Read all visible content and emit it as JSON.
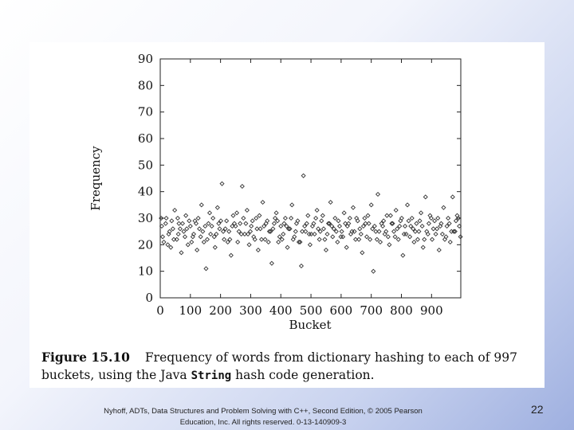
{
  "chart_data": {
    "type": "scatter",
    "title": "",
    "xlabel": "Bucket",
    "ylabel": "Frequency",
    "xlim": [
      0,
      997
    ],
    "ylim": [
      0,
      90
    ],
    "xticks": [
      0,
      100,
      200,
      300,
      400,
      500,
      600,
      700,
      800,
      900
    ],
    "yticks": [
      0,
      10,
      20,
      30,
      40,
      50,
      60,
      70,
      80,
      90
    ],
    "marker": "diamond",
    "grid": false,
    "points": [
      [
        5,
        27
      ],
      [
        12,
        21
      ],
      [
        20,
        30
      ],
      [
        28,
        24
      ],
      [
        35,
        19
      ],
      [
        42,
        26
      ],
      [
        48,
        33
      ],
      [
        55,
        22
      ],
      [
        62,
        28
      ],
      [
        70,
        17
      ],
      [
        78,
        25
      ],
      [
        85,
        31
      ],
      [
        92,
        20
      ],
      [
        100,
        27
      ],
      [
        108,
        23
      ],
      [
        115,
        29
      ],
      [
        122,
        18
      ],
      [
        130,
        26
      ],
      [
        137,
        35
      ],
      [
        145,
        21
      ],
      [
        152,
        11
      ],
      [
        160,
        28
      ],
      [
        167,
        24
      ],
      [
        175,
        30
      ],
      [
        182,
        19
      ],
      [
        190,
        34
      ],
      [
        197,
        26
      ],
      [
        205,
        43
      ],
      [
        212,
        22
      ],
      [
        220,
        29
      ],
      [
        228,
        25
      ],
      [
        235,
        16
      ],
      [
        242,
        31
      ],
      [
        250,
        27
      ],
      [
        257,
        21
      ],
      [
        265,
        28
      ],
      [
        272,
        42
      ],
      [
        280,
        24
      ],
      [
        288,
        33
      ],
      [
        295,
        20
      ],
      [
        302,
        27
      ],
      [
        310,
        23
      ],
      [
        318,
        30
      ],
      [
        325,
        18
      ],
      [
        332,
        26
      ],
      [
        340,
        36
      ],
      [
        348,
        22
      ],
      [
        355,
        29
      ],
      [
        362,
        25
      ],
      [
        370,
        13
      ],
      [
        378,
        28
      ],
      [
        385,
        32
      ],
      [
        392,
        21
      ],
      [
        400,
        27
      ],
      [
        408,
        24
      ],
      [
        415,
        30
      ],
      [
        422,
        19
      ],
      [
        430,
        26
      ],
      [
        437,
        35
      ],
      [
        445,
        23
      ],
      [
        452,
        28
      ],
      [
        460,
        21
      ],
      [
        468,
        12
      ],
      [
        475,
        46
      ],
      [
        482,
        25
      ],
      [
        490,
        31
      ],
      [
        497,
        20
      ],
      [
        505,
        27
      ],
      [
        512,
        24
      ],
      [
        520,
        33
      ],
      [
        528,
        22
      ],
      [
        535,
        29
      ],
      [
        542,
        26
      ],
      [
        550,
        18
      ],
      [
        558,
        28
      ],
      [
        565,
        36
      ],
      [
        572,
        23
      ],
      [
        580,
        30
      ],
      [
        588,
        21
      ],
      [
        595,
        27
      ],
      [
        602,
        25
      ],
      [
        610,
        32
      ],
      [
        618,
        19
      ],
      [
        625,
        28
      ],
      [
        632,
        24
      ],
      [
        640,
        34
      ],
      [
        648,
        22
      ],
      [
        655,
        29
      ],
      [
        662,
        26
      ],
      [
        670,
        17
      ],
      [
        678,
        30
      ],
      [
        685,
        23
      ],
      [
        692,
        28
      ],
      [
        700,
        35
      ],
      [
        707,
        10
      ],
      [
        715,
        25
      ],
      [
        722,
        39
      ],
      [
        730,
        21
      ],
      [
        738,
        27
      ],
      [
        745,
        24
      ],
      [
        752,
        31
      ],
      [
        760,
        20
      ],
      [
        768,
        28
      ],
      [
        775,
        25
      ],
      [
        782,
        33
      ],
      [
        790,
        22
      ],
      [
        797,
        29
      ],
      [
        805,
        16
      ],
      [
        812,
        27
      ],
      [
        820,
        35
      ],
      [
        828,
        23
      ],
      [
        835,
        30
      ],
      [
        842,
        21
      ],
      [
        850,
        28
      ],
      [
        858,
        25
      ],
      [
        865,
        32
      ],
      [
        872,
        19
      ],
      [
        880,
        38
      ],
      [
        888,
        24
      ],
      [
        895,
        31
      ],
      [
        902,
        22
      ],
      [
        910,
        29
      ],
      [
        918,
        26
      ],
      [
        925,
        18
      ],
      [
        932,
        28
      ],
      [
        940,
        34
      ],
      [
        948,
        23
      ],
      [
        955,
        30
      ],
      [
        962,
        21
      ],
      [
        970,
        38
      ],
      [
        978,
        25
      ],
      [
        985,
        31
      ],
      [
        992,
        27
      ],
      [
        8,
        23
      ],
      [
        18,
        28
      ],
      [
        31,
        25
      ],
      [
        45,
        22
      ],
      [
        58,
        30
      ],
      [
        66,
        26
      ],
      [
        82,
        23
      ],
      [
        96,
        29
      ],
      [
        111,
        24
      ],
      [
        126,
        30
      ],
      [
        141,
        25
      ],
      [
        156,
        22
      ],
      [
        171,
        27
      ],
      [
        186,
        24
      ],
      [
        201,
        29
      ],
      [
        216,
        26
      ],
      [
        231,
        22
      ],
      [
        246,
        28
      ],
      [
        261,
        25
      ],
      [
        276,
        30
      ],
      [
        291,
        24
      ],
      [
        306,
        29
      ],
      [
        321,
        26
      ],
      [
        336,
        22
      ],
      [
        351,
        28
      ],
      [
        366,
        25
      ],
      [
        381,
        30
      ],
      [
        396,
        23
      ],
      [
        411,
        28
      ],
      [
        426,
        26
      ],
      [
        441,
        22
      ],
      [
        456,
        29
      ],
      [
        471,
        25
      ],
      [
        486,
        28
      ],
      [
        501,
        24
      ],
      [
        516,
        30
      ],
      [
        531,
        25
      ],
      [
        546,
        22
      ],
      [
        561,
        28
      ],
      [
        576,
        26
      ],
      [
        591,
        29
      ],
      [
        606,
        23
      ],
      [
        621,
        27
      ],
      [
        636,
        25
      ],
      [
        651,
        30
      ],
      [
        666,
        24
      ],
      [
        681,
        28
      ],
      [
        696,
        22
      ],
      [
        711,
        27
      ],
      [
        726,
        25
      ],
      [
        741,
        29
      ],
      [
        756,
        23
      ],
      [
        771,
        28
      ],
      [
        786,
        26
      ],
      [
        801,
        30
      ],
      [
        816,
        24
      ],
      [
        831,
        27
      ],
      [
        846,
        25
      ],
      [
        861,
        29
      ],
      [
        876,
        22
      ],
      [
        891,
        28
      ],
      [
        906,
        26
      ],
      [
        921,
        30
      ],
      [
        936,
        24
      ],
      [
        951,
        27
      ],
      [
        966,
        25
      ],
      [
        981,
        29
      ],
      [
        996,
        23
      ],
      [
        3,
        30
      ],
      [
        25,
        20
      ],
      [
        38,
        29
      ],
      [
        60,
        24
      ],
      [
        74,
        28
      ],
      [
        88,
        26
      ],
      [
        104,
        21
      ],
      [
        119,
        28
      ],
      [
        134,
        23
      ],
      [
        149,
        27
      ],
      [
        164,
        32
      ],
      [
        179,
        23
      ],
      [
        194,
        28
      ],
      [
        209,
        25
      ],
      [
        224,
        21
      ],
      [
        239,
        27
      ],
      [
        254,
        32
      ],
      [
        269,
        24
      ],
      [
        284,
        28
      ],
      [
        299,
        25
      ],
      [
        314,
        22
      ],
      [
        329,
        31
      ],
      [
        344,
        27
      ],
      [
        359,
        21
      ],
      [
        374,
        26
      ],
      [
        389,
        29
      ],
      [
        404,
        22
      ],
      [
        419,
        27
      ],
      [
        434,
        30
      ],
      [
        449,
        25
      ],
      [
        464,
        21
      ],
      [
        479,
        27
      ],
      [
        494,
        24
      ],
      [
        509,
        28
      ],
      [
        524,
        26
      ],
      [
        539,
        31
      ],
      [
        554,
        24
      ],
      [
        569,
        27
      ],
      [
        584,
        25
      ],
      [
        599,
        23
      ],
      [
        614,
        28
      ],
      [
        629,
        30
      ],
      [
        644,
        25
      ],
      [
        659,
        22
      ],
      [
        674,
        27
      ],
      [
        689,
        31
      ],
      [
        704,
        26
      ],
      [
        719,
        22
      ],
      [
        734,
        28
      ],
      [
        749,
        25
      ],
      [
        764,
        31
      ],
      [
        779,
        23
      ],
      [
        794,
        27
      ],
      [
        809,
        24
      ],
      [
        824,
        29
      ],
      [
        839,
        26
      ],
      [
        854,
        22
      ],
      [
        869,
        27
      ],
      [
        884,
        25
      ],
      [
        899,
        30
      ],
      [
        914,
        24
      ],
      [
        929,
        27
      ],
      [
        944,
        22
      ],
      [
        959,
        28
      ],
      [
        974,
        25
      ],
      [
        989,
        30
      ]
    ]
  },
  "caption": {
    "label": "Figure 15.10",
    "text_before_code": "Frequency of words from dictionary hashing to each of 997 buckets, using the Java",
    "code": "String",
    "text_after_code": "hash code generation."
  },
  "footer": {
    "text": "Nyhoff, ADTs, Data Structures and Problem Solving with C++, Second Edition, © 2005 Pearson Education, Inc. All rights reserved. 0-13-140909-3",
    "page_number": "22"
  }
}
